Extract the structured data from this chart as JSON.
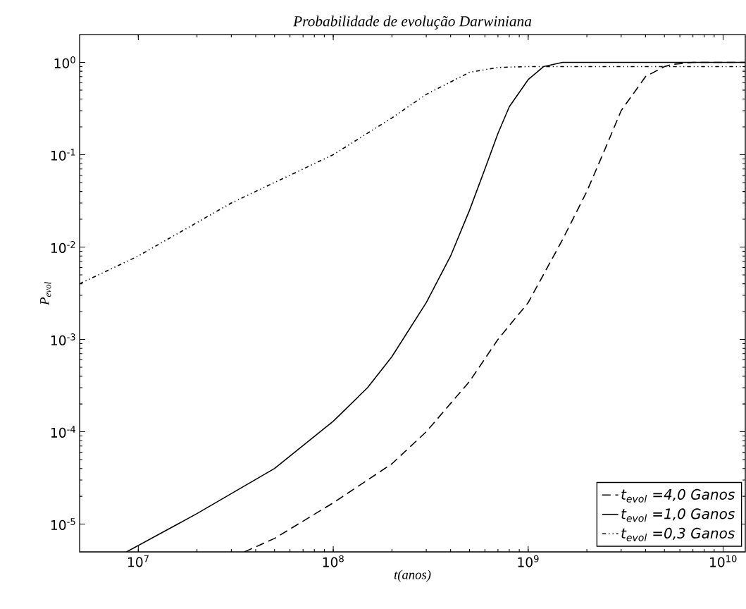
{
  "chart_data": {
    "type": "line",
    "title": "Probabilidade de evolução Darwiniana",
    "xlabel": "t(anos)",
    "ylabel": "P$_{evol}$",
    "log": "xy",
    "grid": false,
    "legend": "bottom right",
    "xlim": [
      5000000,
      13000000000
    ],
    "ylim": [
      5e-06,
      2
    ],
    "xticks": [
      {
        "value": 10000000,
        "label": "10$^{7}$"
      },
      {
        "value": 100000000,
        "label": "10$^{8}$"
      },
      {
        "value": 1000000000,
        "label": "10$^{9}$"
      },
      {
        "value": 10000000000,
        "label": "10$^{10}$"
      }
    ],
    "yticks": [
      {
        "value": 1e-05,
        "label": "10$^{-5}$"
      },
      {
        "value": 0.0001,
        "label": "10$^{-4}$"
      },
      {
        "value": 0.001,
        "label": "10$^{-3}$"
      },
      {
        "value": 0.01,
        "label": "10$^{-2}$"
      },
      {
        "value": 0.1,
        "label": "10$^{-1}$"
      },
      {
        "value": 1,
        "label": "10$^{0}$"
      }
    ],
    "series": [
      {
        "name": "t$_{evol}$ =4,0 Ganos",
        "color": "#000000",
        "line_style": "dashed",
        "x": [
          35000000,
          50000000,
          100000000,
          200000000,
          300000000,
          500000000,
          700000000,
          1000000000,
          1500000000,
          2000000000,
          2500000000,
          3000000000,
          4000000000,
          5000000000,
          5500000000,
          7000000000,
          13000000000
        ],
        "values": [
          5e-06,
          7e-06,
          1.7e-05,
          4.5e-05,
          0.0001,
          0.00035,
          0.001,
          0.0025,
          0.012,
          0.04,
          0.12,
          0.3,
          0.7,
          0.9,
          0.95,
          1.0,
          1.0
        ]
      },
      {
        "name": "t$_{evol}$ =1,0 Ganos",
        "color": "#000000",
        "line_style": "solid",
        "x": [
          8700000,
          20000000,
          50000000,
          100000000,
          150000000,
          200000000,
          300000000,
          400000000,
          500000000,
          600000000,
          700000000,
          800000000,
          1000000000,
          1200000000,
          1500000000,
          13000000000
        ],
        "values": [
          5e-06,
          1.3e-05,
          4e-05,
          0.00013,
          0.0003,
          0.00065,
          0.0025,
          0.008,
          0.025,
          0.07,
          0.17,
          0.33,
          0.65,
          0.9,
          1.0,
          1.0
        ]
      },
      {
        "name": "t$_{evol}$ =0,3 Ganos",
        "color": "#000000",
        "line_style": "dotted",
        "x": [
          5000000,
          10000000,
          30000000,
          100000000,
          200000000,
          300000000,
          500000000,
          700000000,
          1000000000,
          13000000000
        ],
        "values": [
          0.004,
          0.008,
          0.03,
          0.1,
          0.25,
          0.45,
          0.78,
          0.88,
          0.9,
          0.9
        ]
      }
    ]
  }
}
